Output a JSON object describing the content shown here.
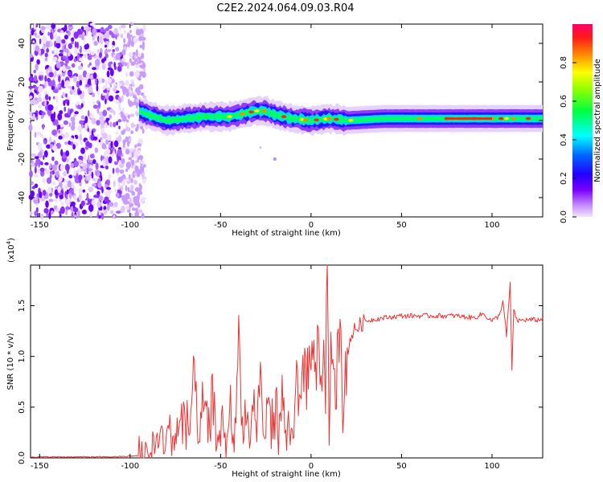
{
  "title": "C2E2.2024.064.09.03.R04",
  "colors": {
    "snr_line": "#ee3333",
    "ridge_core": "#ff2020"
  },
  "chart_data": [
    {
      "type": "heatmap",
      "xlabel": "Height of straight line (km)",
      "ylabel": "Frequency (Hz)",
      "xlim": [
        -155,
        128
      ],
      "ylim": [
        -50,
        50
      ],
      "x_ticks": [
        -150,
        -100,
        -50,
        0,
        50,
        100
      ],
      "y_ticks": [
        -40,
        -20,
        0,
        20,
        40
      ],
      "ridge": {
        "x": [
          -95,
          -90,
          -80,
          -70,
          -60,
          -50,
          -45,
          -40,
          -35,
          -30,
          -25,
          -20,
          -10,
          0,
          10,
          20,
          40,
          60,
          80,
          100,
          110,
          120,
          128
        ],
        "y": [
          5,
          3,
          0,
          1,
          2,
          2,
          2,
          3,
          4,
          5,
          5,
          3,
          1,
          0,
          1,
          0,
          1,
          1,
          1,
          1,
          1,
          1,
          1
        ]
      },
      "noise_region_x": [
        -155,
        -92
      ],
      "colorbar": {
        "label": "Normalized spectral amplitude",
        "range": [
          0.0,
          1.0
        ],
        "ticks": [
          0.0,
          0.2,
          0.4,
          0.6,
          0.8
        ],
        "tick_labels": [
          "0.0",
          "0.2",
          "0.4",
          "0.6",
          "0.8"
        ]
      }
    },
    {
      "type": "line",
      "xlabel": "Height of straight line (km)",
      "ylabel": "SNR (10 * v/v)",
      "y_multiplier": "(x10",
      "y_multiplier_exp": "4",
      "y_multiplier_close": ")",
      "xlim": [
        -155,
        128
      ],
      "ylim": [
        0,
        1.9
      ],
      "x_ticks": [
        -150,
        -100,
        -50,
        0,
        50,
        100
      ],
      "y_ticks": [
        0.0,
        0.5,
        1.0,
        1.5
      ],
      "y_tick_labels": [
        "0.0",
        "0.5",
        "1.0",
        "1.5"
      ],
      "series": [
        {
          "x": [
            -155,
            -110,
            -95,
            -90,
            -85,
            -80,
            -75,
            -70,
            -67,
            -65,
            -62,
            -60,
            -57,
            -55,
            -52,
            -50,
            -47,
            -45,
            -42,
            -40,
            -38,
            -36,
            -34,
            -32,
            -30,
            -28,
            -26,
            -24,
            -22,
            -20,
            -18,
            -16,
            -14,
            -12,
            -10,
            -8,
            -6,
            -4,
            -2,
            0,
            2,
            4,
            6,
            8,
            9,
            10,
            11,
            12,
            14,
            16,
            18,
            20,
            22,
            25,
            30,
            40,
            50,
            60,
            70,
            80,
            90,
            95,
            100,
            104,
            106,
            108,
            110,
            111,
            112,
            114,
            118,
            128
          ],
          "y": [
            0.01,
            0.01,
            0.02,
            0.05,
            0.15,
            0.22,
            0.25,
            0.45,
            0.3,
            0.85,
            0.25,
            0.55,
            0.3,
            0.7,
            0.2,
            0.4,
            0.15,
            0.6,
            0.2,
            1.25,
            0.3,
            0.5,
            0.15,
            0.6,
            0.3,
            0.85,
            0.2,
            0.55,
            0.3,
            0.75,
            0.25,
            0.65,
            0.2,
            0.3,
            0.45,
            0.75,
            0.7,
            0.85,
            0.9,
            1.0,
            1.05,
            1.15,
            0.8,
            1.3,
            1.9,
            0.35,
            1.1,
            0.9,
            0.95,
            1.2,
            0.8,
            1.05,
            1.2,
            1.28,
            1.35,
            1.38,
            1.4,
            1.4,
            1.4,
            1.4,
            1.38,
            1.42,
            1.35,
            1.4,
            1.55,
            1.2,
            1.72,
            0.88,
            1.45,
            1.35,
            1.36,
            1.36
          ]
        }
      ]
    }
  ]
}
